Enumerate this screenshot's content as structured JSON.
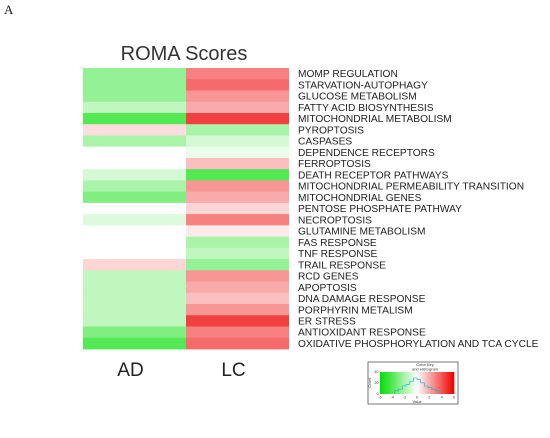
{
  "panel_label": "A",
  "chart_data": {
    "type": "heatmap",
    "title": "ROMA Scores",
    "columns": [
      "AD",
      "LC"
    ],
    "rows": [
      "MOMP REGULATION",
      "STARVATION-AUTOPHAGY",
      "GLUCOSE METABOLISM",
      "FATTY ACID BIOSYNTHESIS",
      "MITOCHONDRIAL METABOLISM",
      "PYROPTOSIS",
      "CASPASES",
      "DEPENDENCE RECEPTORS",
      "FERROPTOSIS",
      "DEATH RECEPTOR PATHWAYS",
      "MITOCHONDRIAL PERMEABILITY TRANSITION",
      "MITOCHONDRIAL GENES",
      "PENTOSE PHOSPHATE PATHWAY",
      "NECROPTOSIS",
      "GLUTAMINE METABOLISM",
      "FAS RESPONSE",
      "TNF RESPONSE",
      "TRAIL RESPONSE",
      "RCD GENES",
      "APOPTOSIS",
      "DNA DAMAGE RESPONSE",
      "PORPHYRIN METALISM",
      "ER STRESS",
      "ANTIOXIDANT RESPONSE",
      "OXIDATIVE PHOSPHORYLATION AND TCA CYCLE"
    ],
    "values": [
      [
        -2.5,
        3
      ],
      [
        -2.5,
        3.5
      ],
      [
        -2.5,
        2.5
      ],
      [
        -1.5,
        2
      ],
      [
        -4,
        4.5
      ],
      [
        0.8,
        -2
      ],
      [
        -2,
        -1
      ],
      [
        0,
        -0.5
      ],
      [
        0,
        1.5
      ],
      [
        -1,
        -4
      ],
      [
        -2,
        2.5
      ],
      [
        -3,
        2
      ],
      [
        0,
        1
      ],
      [
        -0.8,
        3
      ],
      [
        0,
        0.5
      ],
      [
        0,
        -2
      ],
      [
        0,
        -1.5
      ],
      [
        1,
        -2.5
      ],
      [
        -1.5,
        2.5
      ],
      [
        -1.5,
        2
      ],
      [
        -1.5,
        1.5
      ],
      [
        -1.5,
        2.5
      ],
      [
        -1.5,
        4.5
      ],
      [
        -3,
        3
      ],
      [
        -4,
        3.5
      ]
    ],
    "color_scale": {
      "min": -6,
      "max": 6,
      "low": "#00dd00",
      "mid": "#ffffff",
      "high": "#ee0000"
    },
    "legend": {
      "title_line1": "Color Key",
      "title_line2": "and Histogram",
      "xlabel": "Value",
      "ylabel": "Count",
      "ticks": [
        -6,
        -4,
        -2,
        0,
        2,
        4,
        6
      ],
      "y_ticks": [
        0,
        20,
        40
      ],
      "placement": "bottom-right"
    }
  }
}
